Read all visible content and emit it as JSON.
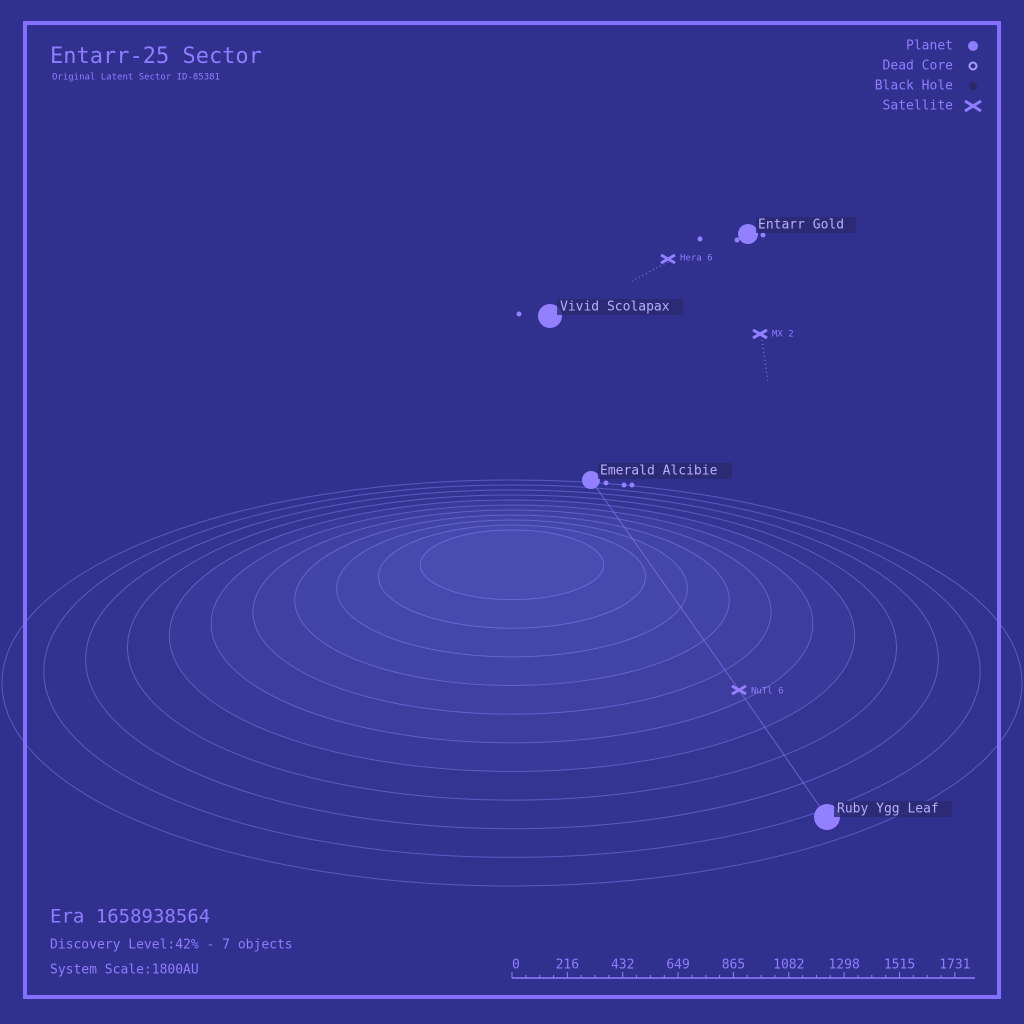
{
  "header": {
    "title": "Entarr-25 Sector",
    "subtitle": "Original Latent Sector ID-85381"
  },
  "legend": [
    "Planet",
    "Dead Core",
    "Black Hole",
    "Satellite"
  ],
  "objects": [
    "Entarr Gold",
    "Hera 6",
    "Vivid Scolapax",
    "MX 2",
    "Emerald Alcibie",
    "NuTl 6",
    "Ruby Ygg Leaf"
  ],
  "footer": {
    "era": "Era 1658938564",
    "discovery": "Discovery Level:42% - 7 objects",
    "scale": "System Scale:1800AU"
  },
  "scale_ticks": [
    0,
    216,
    432,
    649,
    865,
    1082,
    1298,
    1515,
    1731
  ]
}
